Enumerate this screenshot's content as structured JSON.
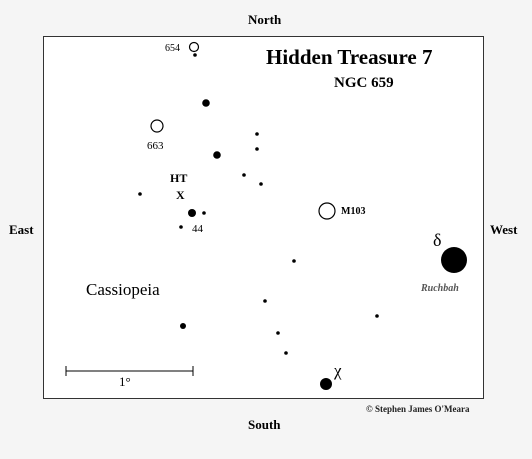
{
  "directions": {
    "north": "North",
    "south": "South",
    "east": "East",
    "west": "West"
  },
  "title": "Hidden Treasure 7",
  "subtitle": "NGC 659",
  "constellation": "Cassiopeia",
  "credit": "© Stephen James O'Meara",
  "scale_bar": {
    "label": "1°"
  },
  "labels": {
    "ngc654": "654",
    "ngc663": "663",
    "ht_line1": "HT",
    "ht_line2": "X",
    "mag44": "44",
    "m103": "M103",
    "delta": "δ",
    "ruchbah": "Ruchbah",
    "chi": "χ"
  },
  "colors": {
    "ink": "#000000",
    "ruchbah_label": "#555555",
    "background": "#f5f5f5",
    "chart": "#ffffff"
  }
}
